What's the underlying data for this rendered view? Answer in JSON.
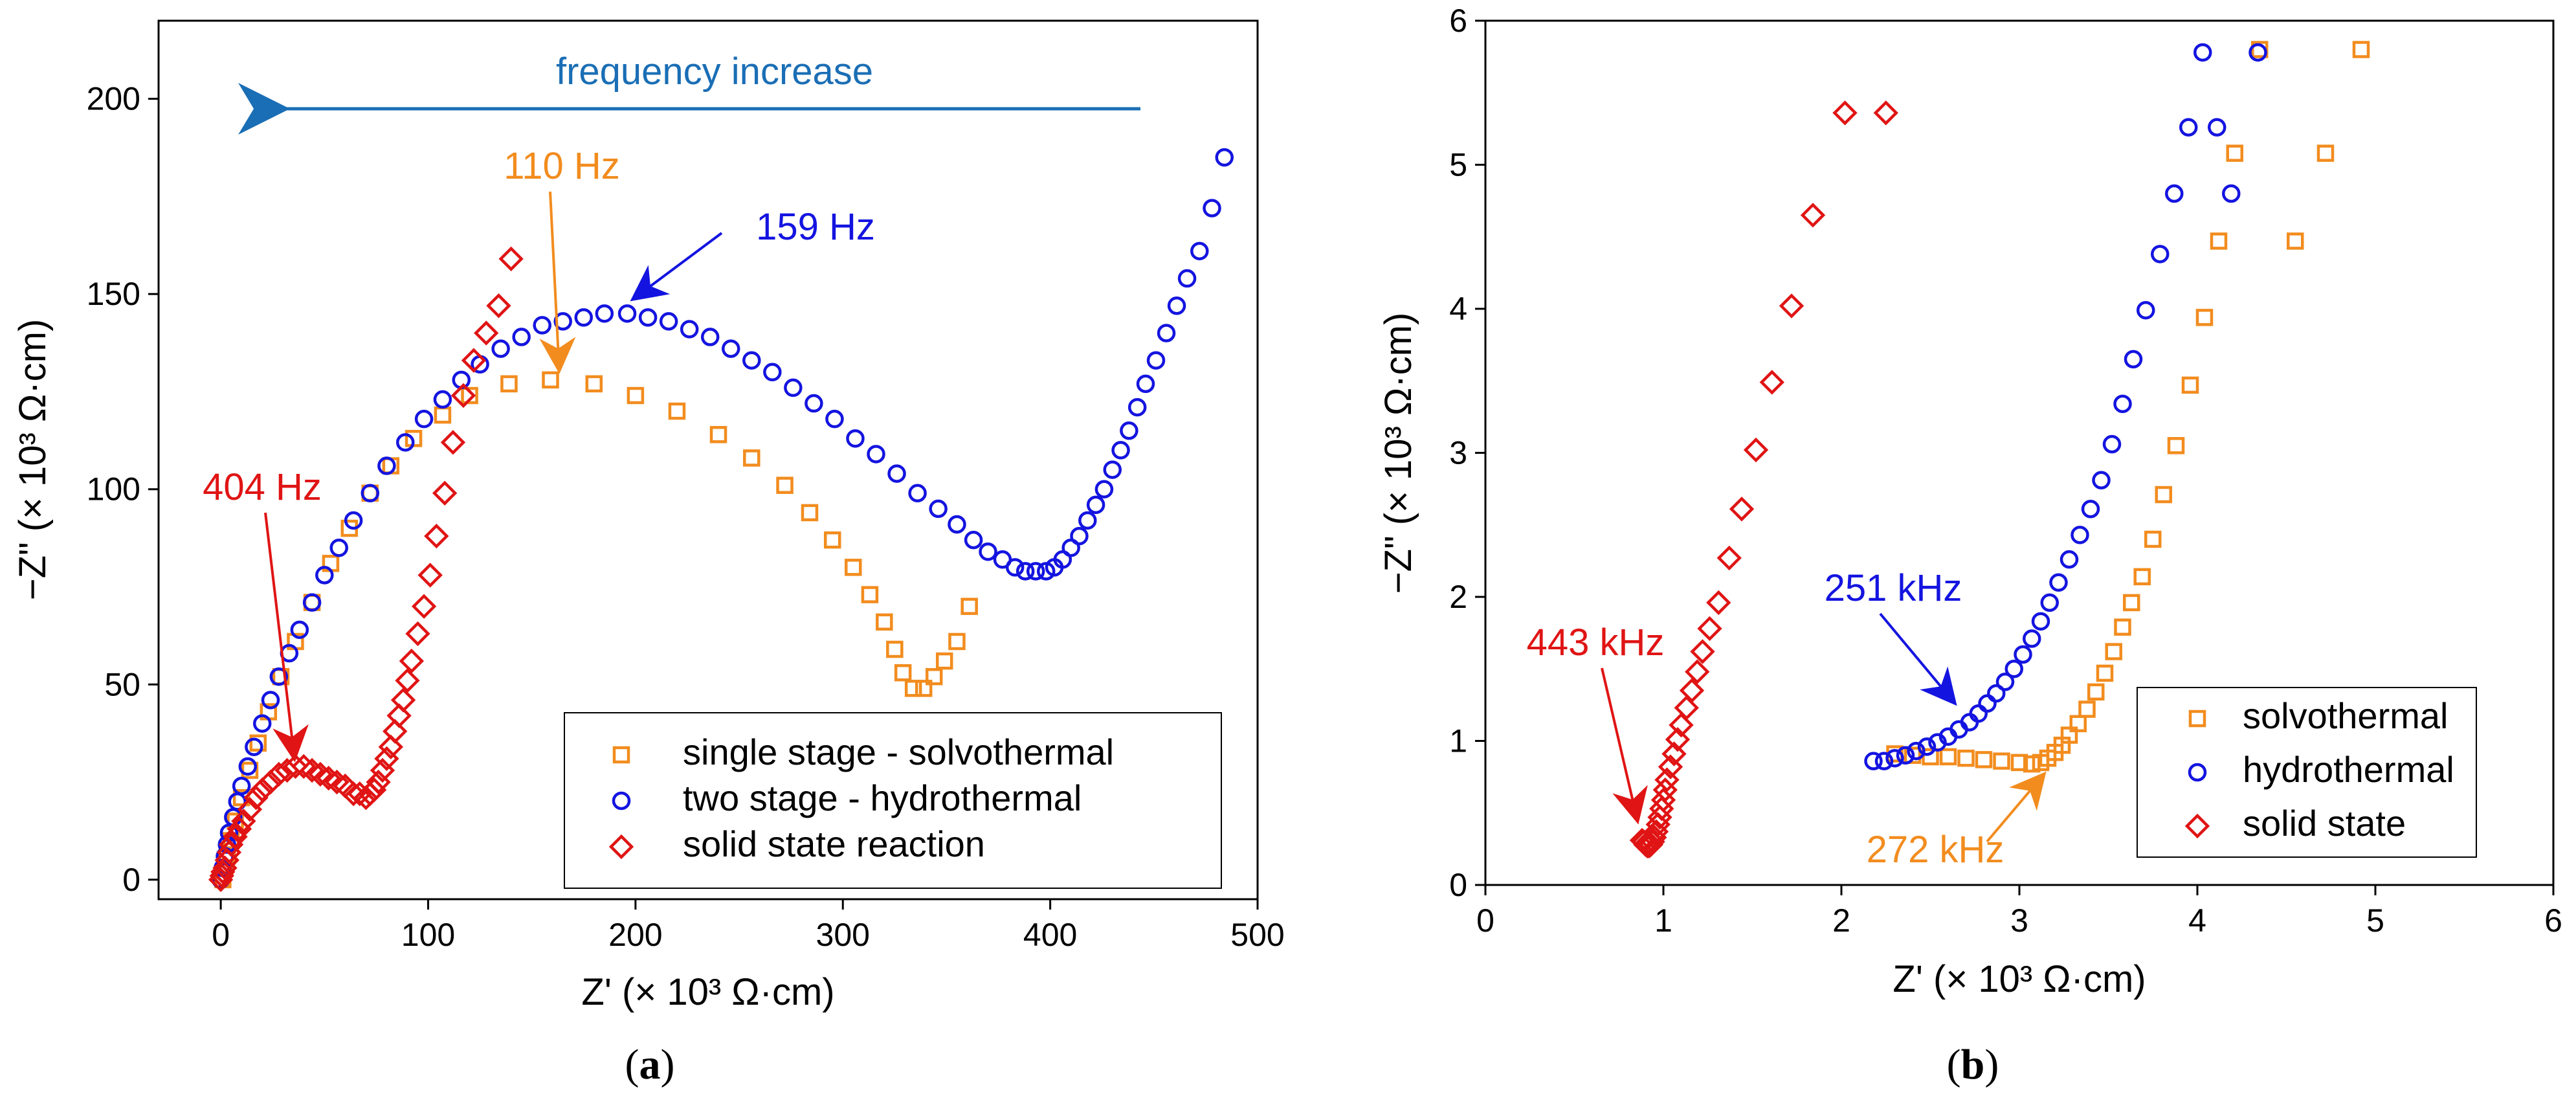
{
  "colors": {
    "orange": "#F28C1E",
    "blue": "#1414E0",
    "red": "#E01414",
    "arrow_blue": "#1A6EB5",
    "axis": "#000000"
  },
  "chart_data": [
    {
      "type": "scatter",
      "panel": "(a)",
      "panel_letter": "a",
      "panel_open": "(",
      "panel_close": ")",
      "xlabel": "Z' (× 10³ Ω·cm)",
      "ylabel": "−Z\" (× 10³ Ω·cm)",
      "xlim": [
        -30,
        500
      ],
      "ylim": [
        -5,
        220
      ],
      "xticks": [
        0,
        100,
        200,
        300,
        400,
        500
      ],
      "yticks": [
        0,
        50,
        100,
        150,
        200
      ],
      "legend_position": "bottom-right",
      "series": [
        {
          "name": "single stage - solvothermal",
          "marker": "square",
          "color": "#F28C1E",
          "x": [
            1,
            2,
            3,
            5,
            7,
            10,
            14,
            18,
            23,
            29,
            36,
            44,
            53,
            62,
            72,
            82,
            93,
            107,
            120,
            139,
            159,
            180,
            200,
            220,
            240,
            256,
            272,
            284,
            295,
            305,
            313,
            320,
            325,
            329,
            334,
            339,
            344,
            349,
            355,
            361
          ],
          "y": [
            0,
            3,
            6,
            10,
            15,
            21,
            28,
            35,
            43,
            52,
            61,
            71,
            81,
            90,
            99,
            106,
            113,
            119,
            124,
            127,
            128,
            127,
            124,
            120,
            114,
            108,
            101,
            94,
            87,
            80,
            73,
            66,
            59,
            53,
            49,
            49,
            52,
            56,
            61,
            70
          ]
        },
        {
          "name": "two stage - hydrothermal",
          "marker": "circle",
          "color": "#1414E0",
          "x": [
            0,
            1,
            2,
            3,
            4,
            6,
            8,
            10,
            13,
            16,
            20,
            24,
            28,
            33,
            38,
            44,
            50,
            57,
            64,
            72,
            80,
            89,
            98,
            107,
            116,
            125,
            135,
            145,
            155,
            165,
            175,
            185,
            196,
            206,
            216,
            226,
            236,
            246,
            256,
            266,
            276,
            286,
            296,
            306,
            316,
            326,
            336,
            346,
            355,
            363,
            370,
            377,
            383,
            388,
            393,
            398,
            402,
            406,
            410,
            414,
            418,
            422,
            426,
            430,
            434,
            438,
            442,
            446,
            451,
            456,
            461,
            466,
            472,
            478,
            484
          ],
          "y": [
            0,
            3,
            6,
            9,
            12,
            16,
            20,
            24,
            29,
            34,
            40,
            46,
            52,
            58,
            64,
            71,
            78,
            85,
            92,
            99,
            106,
            112,
            118,
            123,
            128,
            132,
            136,
            139,
            142,
            143,
            144,
            145,
            145,
            144,
            143,
            141,
            139,
            136,
            133,
            130,
            126,
            122,
            118,
            113,
            109,
            104,
            99,
            95,
            91,
            87,
            84,
            82,
            80,
            79,
            79,
            79,
            80,
            82,
            85,
            88,
            92,
            96,
            100,
            105,
            110,
            115,
            121,
            127,
            133,
            140,
            147,
            154,
            161,
            172,
            185
          ]
        },
        {
          "name": "solid state reaction",
          "marker": "diamond",
          "color": "#E01414",
          "x": [
            0,
            0.5,
            1,
            2,
            3,
            4,
            5,
            7,
            9,
            11,
            14,
            17,
            20,
            24,
            28,
            32,
            36,
            40,
            44,
            48,
            52,
            56,
            60,
            64,
            67,
            70,
            72,
            74,
            76,
            78,
            80,
            82,
            84,
            86,
            88,
            90,
            92,
            95,
            98,
            101,
            104,
            108,
            112,
            117,
            122,
            128,
            134,
            140
          ],
          "y": [
            0,
            1,
            2,
            3,
            5,
            7,
            9,
            11,
            13,
            15,
            18,
            21,
            23,
            25,
            27,
            28,
            29,
            29,
            28,
            27,
            26,
            25,
            24,
            22,
            22,
            21,
            22,
            23,
            25,
            28,
            31,
            34,
            38,
            42,
            46,
            51,
            56,
            63,
            70,
            78,
            88,
            99,
            112,
            124,
            133,
            140,
            147,
            159
          ]
        }
      ],
      "annotations": [
        {
          "text": "frequency increase",
          "color": "#1A6EB5"
        },
        {
          "text": "110 Hz",
          "color": "#F28C1E"
        },
        {
          "text": "159 Hz",
          "color": "#1414E0"
        },
        {
          "text": "404 Hz",
          "color": "#E01414"
        }
      ]
    },
    {
      "type": "scatter",
      "panel": "(b)",
      "panel_letter": "b",
      "panel_open": "(",
      "panel_close": ")",
      "xlabel": "Z' (× 10³ Ω·cm)",
      "ylabel": "−Z\" (× 10³ Ω·cm)",
      "xlim": [
        0,
        6
      ],
      "ylim": [
        0,
        6
      ],
      "xticks": [
        0,
        1,
        2,
        3,
        4,
        5,
        6
      ],
      "yticks": [
        0,
        1,
        2,
        3,
        4,
        5,
        6
      ],
      "legend_position": "bottom-right",
      "series": [
        {
          "name": "solvothermal",
          "marker": "square",
          "color": "#F28C1E",
          "x": [
            2.3,
            2.4,
            2.5,
            2.6,
            2.7,
            2.8,
            2.9,
            3.0,
            3.07,
            3.12,
            3.16,
            3.2,
            3.24,
            3.28,
            3.33,
            3.38,
            3.43,
            3.48,
            3.53,
            3.58,
            3.63,
            3.69,
            3.75,
            3.81,
            3.88,
            3.96,
            4.04,
            4.12,
            4.21,
            4.35,
            4.55,
            4.72,
            4.92
          ],
          "y": [
            0.91,
            0.9,
            0.89,
            0.89,
            0.88,
            0.87,
            0.86,
            0.85,
            0.84,
            0.85,
            0.88,
            0.92,
            0.97,
            1.04,
            1.12,
            1.22,
            1.34,
            1.47,
            1.62,
            1.79,
            1.96,
            2.14,
            2.4,
            2.71,
            3.05,
            3.47,
            3.94,
            4.47,
            5.08,
            5.8,
            4.47,
            5.08,
            5.8
          ]
        },
        {
          "name": "hydrothermal",
          "marker": "circle",
          "color": "#1414E0",
          "x": [
            2.18,
            2.24,
            2.3,
            2.36,
            2.42,
            2.48,
            2.54,
            2.6,
            2.66,
            2.72,
            2.77,
            2.82,
            2.87,
            2.92,
            2.97,
            3.02,
            3.07,
            3.12,
            3.17,
            3.22,
            3.28,
            3.34,
            3.4,
            3.46,
            3.52,
            3.58,
            3.64,
            3.71,
            3.79,
            3.87,
            3.95,
            4.03,
            4.11,
            4.19,
            4.34
          ],
          "y": [
            0.86,
            0.86,
            0.88,
            0.9,
            0.93,
            0.96,
            0.99,
            1.03,
            1.08,
            1.13,
            1.19,
            1.26,
            1.33,
            1.41,
            1.5,
            1.6,
            1.71,
            1.83,
            1.96,
            2.1,
            2.26,
            2.43,
            2.61,
            2.81,
            3.06,
            3.34,
            3.65,
            3.99,
            4.38,
            4.8,
            5.26,
            5.78,
            5.26,
            4.8,
            5.78
          ]
        },
        {
          "name": "solid state",
          "marker": "diamond",
          "color": "#E01414",
          "x": [
            0.88,
            0.89,
            0.9,
            0.91,
            0.92,
            0.93,
            0.94,
            0.95,
            0.96,
            0.97,
            0.98,
            0.99,
            1.0,
            1.01,
            1.02,
            1.04,
            1.06,
            1.08,
            1.1,
            1.13,
            1.16,
            1.19,
            1.22,
            1.26,
            1.31,
            1.37,
            1.44,
            1.52,
            1.61,
            1.72,
            1.84,
            2.02,
            2.25
          ],
          "y": [
            0.31,
            0.3,
            0.28,
            0.27,
            0.27,
            0.28,
            0.3,
            0.33,
            0.37,
            0.42,
            0.47,
            0.53,
            0.59,
            0.66,
            0.73,
            0.82,
            0.91,
            1.01,
            1.11,
            1.23,
            1.35,
            1.48,
            1.62,
            1.78,
            1.96,
            2.27,
            2.61,
            3.02,
            3.49,
            4.02,
            4.65,
            5.36,
            5.36
          ]
        }
      ],
      "annotations": [
        {
          "text": "251 kHz",
          "color": "#1414E0"
        },
        {
          "text": "443 kHz",
          "color": "#E01414"
        },
        {
          "text": "272 kHz",
          "color": "#F28C1E"
        }
      ]
    }
  ]
}
